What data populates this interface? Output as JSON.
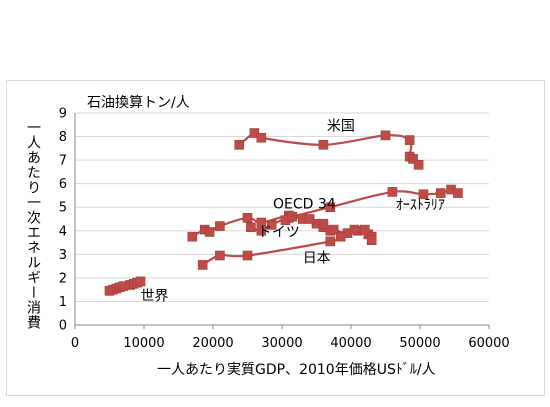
{
  "chart_data": {
    "type": "line",
    "title": "",
    "y_unit": "石油換算トン/人",
    "xlabel": "一人あたり実質GDP、2010年価格USﾄﾞﾙ/人",
    "ylabel": "一人あたり一次エネルギー消費",
    "xlim": [
      0,
      60000
    ],
    "ylim": [
      0,
      9
    ],
    "x_ticks": [
      "0",
      "10000",
      "20000",
      "30000",
      "40000",
      "50000",
      "60000"
    ],
    "y_ticks": [
      "0",
      "1",
      "2",
      "3",
      "4",
      "5",
      "6",
      "7",
      "8",
      "9"
    ],
    "grid": "horizontal",
    "legend": "none",
    "marker_color": "#be4b48",
    "line_color": "#be4b48",
    "series": [
      {
        "label": "米国",
        "label_at": [
          36500,
          8.25
        ],
        "points": [
          [
            23800,
            7.65
          ],
          [
            26000,
            8.15
          ],
          [
            27000,
            7.95
          ],
          [
            36000,
            7.65
          ],
          [
            45000,
            8.05
          ],
          [
            48500,
            7.85
          ],
          [
            48500,
            7.15
          ],
          [
            49000,
            7.05
          ],
          [
            49800,
            6.8
          ]
        ]
      },
      {
        "label": "OECD 34",
        "label_at": [
          28700,
          4.95
        ],
        "points": [
          [
            17000,
            3.75
          ],
          [
            18800,
            4.05
          ],
          [
            19500,
            3.95
          ],
          [
            21000,
            4.2
          ],
          [
            25000,
            4.55
          ],
          [
            27000,
            4.35
          ],
          [
            31000,
            4.65
          ],
          [
            33000,
            4.5
          ],
          [
            35000,
            4.3
          ],
          [
            36000,
            4.15
          ],
          [
            37000,
            4.0
          ]
        ]
      },
      {
        "label": "ドイツ",
        "label_at": [
          26500,
          3.75
        ],
        "points": [
          [
            25500,
            4.15
          ],
          [
            27000,
            4.0
          ],
          [
            28500,
            4.25
          ],
          [
            31000,
            4.55
          ],
          [
            34000,
            4.5
          ],
          [
            36000,
            4.3
          ],
          [
            37500,
            4.05
          ],
          [
            39500,
            3.9
          ],
          [
            41000,
            4.0
          ],
          [
            42500,
            3.85
          ],
          [
            43000,
            3.75
          ]
        ]
      },
      {
        "label": "日本",
        "label_at": [
          33000,
          2.65
        ],
        "points": [
          [
            18500,
            2.55
          ],
          [
            21000,
            2.95
          ],
          [
            25000,
            2.95
          ],
          [
            37000,
            3.55
          ],
          [
            38500,
            3.75
          ],
          [
            40500,
            4.05
          ],
          [
            42000,
            4.05
          ],
          [
            43000,
            3.6
          ]
        ]
      },
      {
        "label": "ｵｰｽﾄﾗﾘｱ",
        "label_at": [
          46500,
          4.9
        ],
        "points": [
          [
            30500,
            4.45
          ],
          [
            31500,
            4.6
          ],
          [
            37000,
            5.0
          ],
          [
            46000,
            5.65
          ],
          [
            50500,
            5.55
          ],
          [
            53000,
            5.6
          ],
          [
            54500,
            5.75
          ],
          [
            55500,
            5.6
          ]
        ]
      },
      {
        "label": "世界",
        "label_at": [
          9500,
          1.05
        ],
        "points": [
          [
            5000,
            1.45
          ],
          [
            5500,
            1.5
          ],
          [
            6000,
            1.55
          ],
          [
            6500,
            1.6
          ],
          [
            7000,
            1.65
          ],
          [
            8000,
            1.7
          ],
          [
            8500,
            1.75
          ],
          [
            9000,
            1.8
          ],
          [
            9500,
            1.85
          ]
        ]
      }
    ]
  }
}
